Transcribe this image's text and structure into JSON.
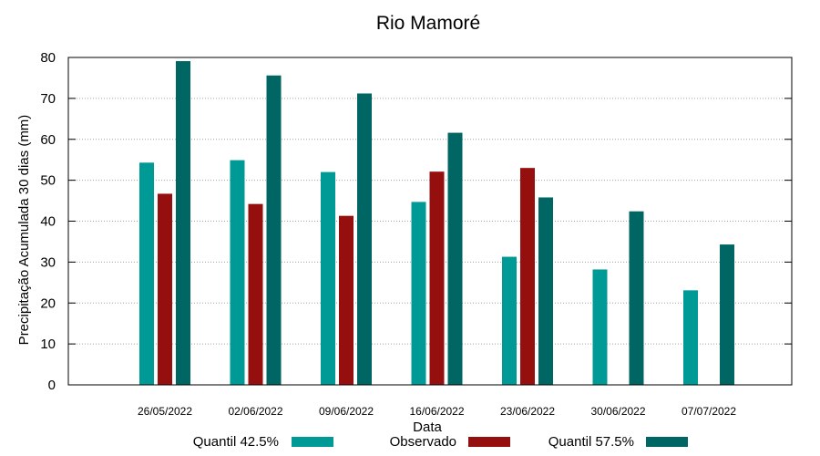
{
  "chart_data": {
    "type": "bar",
    "title": "Rio Mamoré",
    "xlabel": "Data",
    "ylabel": "Precipitação Acumulada 30 dias (mm)",
    "ylim": [
      0,
      80
    ],
    "yticks": [
      "0",
      "10",
      "20",
      "30",
      "40",
      "50",
      "60",
      "70",
      "80"
    ],
    "grid": true,
    "legend_position": "bottom",
    "categories": [
      "26/05/2022",
      "02/06/2022",
      "09/06/2022",
      "16/06/2022",
      "23/06/2022",
      "30/06/2022",
      "07/07/2022"
    ],
    "series": [
      {
        "name": "Quantil 42.5%",
        "color": "#009a96",
        "values": [
          54.3,
          54.9,
          52.0,
          44.7,
          31.3,
          28.2,
          23.1
        ]
      },
      {
        "name": "Observado",
        "color": "#950f0f",
        "values": [
          46.7,
          44.2,
          41.3,
          52.1,
          53.0,
          null,
          null
        ]
      },
      {
        "name": "Quantil 57.5%",
        "color": "#006664",
        "values": [
          79.1,
          75.6,
          71.2,
          61.6,
          45.8,
          42.4,
          34.3
        ]
      }
    ]
  }
}
